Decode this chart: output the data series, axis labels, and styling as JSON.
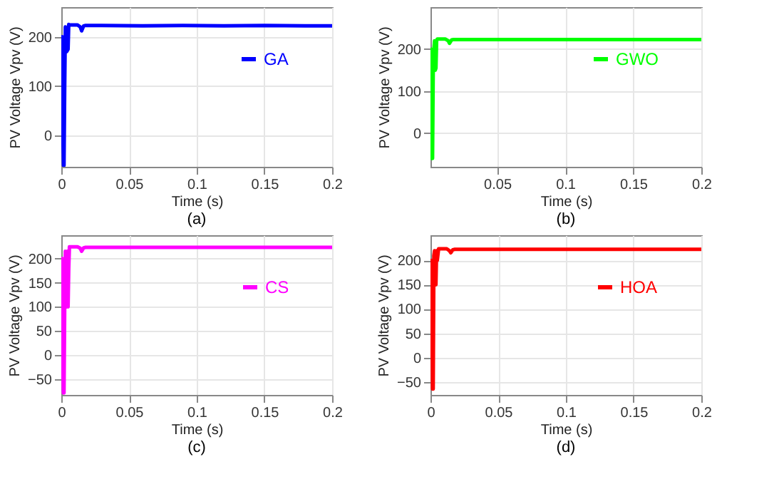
{
  "chart_data": [
    {
      "type": "line",
      "xlabel": "Time (s)",
      "ylabel": "PV Voltage Vpv (V)",
      "annotations": [
        "(a)"
      ],
      "xlim": [
        0,
        0.2
      ],
      "ylim": [
        -63,
        260
      ],
      "xticks": [
        0,
        0.05,
        0.1,
        0.15,
        0.2
      ],
      "yticks": [
        0,
        100,
        200
      ],
      "grid": true,
      "legend": "top right",
      "series": [
        {
          "name": "GA",
          "color": "#0000ff",
          "x": [
            0,
            0.0007,
            0.0012,
            0.0016,
            0.002,
            0.0025,
            0.003,
            0.0035,
            0.004,
            0.005,
            0.0055,
            0.006,
            0.008,
            0.012,
            0.014,
            0.015,
            0.0165,
            0.018,
            0.03,
            0.06,
            0.09,
            0.12,
            0.15,
            0.18,
            0.2
          ],
          "values": [
            0,
            200,
            0,
            -60,
            -60,
            100,
            220,
            170,
            170,
            175,
            225,
            224,
            224,
            224,
            220,
            212,
            222,
            223,
            223,
            222,
            223,
            222,
            223,
            222,
            222
          ]
        }
      ]
    },
    {
      "type": "line",
      "xlabel": "Time (s)",
      "ylabel": "PV Voltage Vpv (V)",
      "annotations": [
        "(b)"
      ],
      "xlim": [
        0.001,
        0.2
      ],
      "ylim": [
        -80,
        300
      ],
      "xticks": [
        0.05,
        0.1,
        0.15,
        0.2
      ],
      "yticks": [
        0,
        100,
        200
      ],
      "grid": true,
      "legend": "top right",
      "series": [
        {
          "name": "GWO",
          "color": "#00ff00",
          "x": [
            0.001,
            0.0015,
            0.002,
            0.0025,
            0.003,
            0.0035,
            0.004,
            0.0045,
            0.005,
            0.0055,
            0.006,
            0.0065,
            0.008,
            0.012,
            0.014,
            0.015,
            0.0165,
            0.018,
            0.05,
            0.1,
            0.15,
            0.2
          ],
          "values": [
            120,
            200,
            -60,
            -60,
            150,
            200,
            220,
            150,
            155,
            220,
            224,
            224,
            224,
            224,
            220,
            214,
            222,
            223,
            223,
            223,
            223,
            223
          ]
        }
      ]
    },
    {
      "type": "line",
      "xlabel": "Time (s)",
      "ylabel": "PV Voltage Vpv (V)",
      "annotations": [
        "(c)"
      ],
      "xlim": [
        0,
        0.2
      ],
      "ylim": [
        -82,
        248
      ],
      "xticks": [
        0,
        0.05,
        0.1,
        0.15,
        0.2
      ],
      "yticks": [
        -50,
        0,
        50,
        100,
        150,
        200
      ],
      "grid": true,
      "legend": "top right",
      "series": [
        {
          "name": "CS",
          "color": "#ff00ff",
          "x": [
            0,
            0.0005,
            0.001,
            0.0015,
            0.002,
            0.0025,
            0.003,
            0.0035,
            0.004,
            0.0045,
            0.005,
            0.0055,
            0.006,
            0.007,
            0.012,
            0.014,
            0.015,
            0.0165,
            0.018,
            0.05,
            0.1,
            0.15,
            0.2
          ],
          "values": [
            0,
            200,
            0,
            -78,
            -78,
            100,
            215,
            100,
            100,
            215,
            100,
            180,
            224,
            224,
            224,
            221,
            215,
            222,
            223,
            223,
            223,
            223,
            223
          ]
        }
      ]
    },
    {
      "type": "line",
      "xlabel": "Time (s)",
      "ylabel": "PV Voltage Vpv (V)",
      "annotations": [
        "(d)"
      ],
      "xlim": [
        0,
        0.2
      ],
      "ylim": [
        -77,
        252
      ],
      "xticks": [
        0,
        0.05,
        0.1,
        0.15,
        0.2
      ],
      "yticks": [
        -50,
        0,
        50,
        100,
        150,
        200
      ],
      "grid": true,
      "legend": "top right",
      "series": [
        {
          "name": "HOA",
          "color": "#ff0000",
          "x": [
            0,
            0.0005,
            0.001,
            0.0015,
            0.002,
            0.0025,
            0.003,
            0.0035,
            0.004,
            0.0045,
            0.005,
            0.006,
            0.008,
            0.012,
            0.014,
            0.015,
            0.0165,
            0.018,
            0.05,
            0.1,
            0.15,
            0.2
          ],
          "values": [
            0,
            200,
            200,
            -65,
            -65,
            210,
            220,
            150,
            150,
            220,
            200,
            224,
            224,
            224,
            220,
            216,
            222,
            223,
            223,
            223,
            223,
            223
          ]
        }
      ]
    }
  ]
}
